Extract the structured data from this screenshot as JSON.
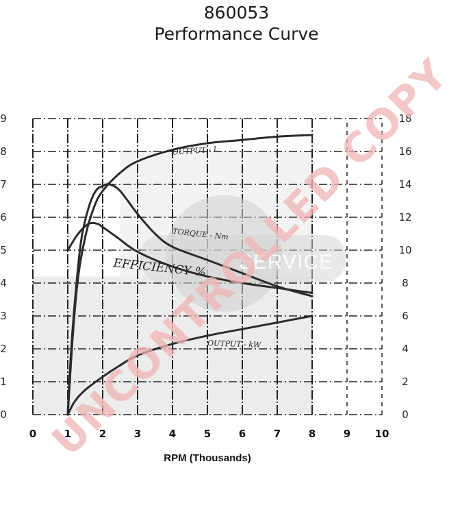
{
  "header": {
    "line1": "860053",
    "line2": "Performance Curve"
  },
  "watermark": {
    "diagonal": "UNCONTROLLED COPY",
    "center": "SERVICE"
  },
  "chart_data": {
    "type": "line",
    "xlabel": "RPM (Thousands)",
    "xlim": [
      0,
      10
    ],
    "x_ticks": [
      "0",
      "1",
      "2",
      "3",
      "4",
      "5",
      "6",
      "7",
      "8",
      "9",
      "10"
    ],
    "y_left_ticks": [
      "0",
      "1",
      "2",
      "3",
      "4",
      "5",
      "6",
      "7",
      "8",
      "9"
    ],
    "y_right_ticks": [
      "0",
      "2",
      "4",
      "6",
      "8",
      "10",
      "12",
      "14",
      "16",
      "18"
    ],
    "ylim_left": [
      0,
      9
    ],
    "ylim_right": [
      0,
      18
    ],
    "grid": true,
    "series": [
      {
        "name": "OUTPUT - I",
        "axis": "right",
        "points": [
          [
            1.0,
            0.0
          ],
          [
            1.15,
            5.0
          ],
          [
            1.3,
            8.4
          ],
          [
            1.5,
            10.8
          ],
          [
            1.75,
            12.6
          ],
          [
            2.0,
            13.6
          ],
          [
            2.5,
            14.7
          ],
          [
            3.0,
            15.4
          ],
          [
            4.0,
            16.1
          ],
          [
            5.0,
            16.5
          ],
          [
            6.0,
            16.7
          ],
          [
            7.0,
            16.9
          ],
          [
            8.0,
            17.0
          ]
        ]
      },
      {
        "name": "TORQUE - Nm",
        "axis": "right",
        "points": [
          [
            1.0,
            0.0
          ],
          [
            1.1,
            4.0
          ],
          [
            1.25,
            8.0
          ],
          [
            1.4,
            10.8
          ],
          [
            1.6,
            12.6
          ],
          [
            1.8,
            13.6
          ],
          [
            2.0,
            13.9
          ],
          [
            2.2,
            14.0
          ],
          [
            2.5,
            13.6
          ],
          [
            3.0,
            12.2
          ],
          [
            3.5,
            11.0
          ],
          [
            4.0,
            10.2
          ],
          [
            5.0,
            9.4
          ],
          [
            6.0,
            8.6
          ],
          [
            7.0,
            7.8
          ],
          [
            8.0,
            7.2
          ]
        ]
      },
      {
        "name": "EFFICIENCY %",
        "axis": "left",
        "points": [
          [
            1.0,
            5.0
          ],
          [
            1.3,
            5.5
          ],
          [
            1.6,
            5.8
          ],
          [
            1.85,
            5.8
          ],
          [
            2.0,
            5.7
          ],
          [
            2.4,
            5.4
          ],
          [
            3.0,
            4.95
          ],
          [
            4.0,
            4.5
          ],
          [
            5.0,
            4.2
          ],
          [
            6.0,
            4.0
          ],
          [
            7.0,
            3.85
          ],
          [
            8.0,
            3.7
          ]
        ]
      },
      {
        "name": "OUTPUT - kW",
        "axis": "left",
        "points": [
          [
            1.0,
            0.0
          ],
          [
            1.2,
            0.4
          ],
          [
            1.5,
            0.75
          ],
          [
            2.0,
            1.15
          ],
          [
            2.5,
            1.5
          ],
          [
            3.0,
            1.8
          ],
          [
            4.0,
            2.15
          ],
          [
            5.0,
            2.4
          ],
          [
            6.0,
            2.6
          ],
          [
            7.0,
            2.8
          ],
          [
            8.0,
            3.0
          ]
        ]
      }
    ]
  },
  "colors": {
    "curve": "#2b2b2b",
    "grid": "#222222",
    "shading": "#dcdcdc",
    "watermark": "#f2c9c9",
    "center_mark": "#c8c8c8"
  }
}
